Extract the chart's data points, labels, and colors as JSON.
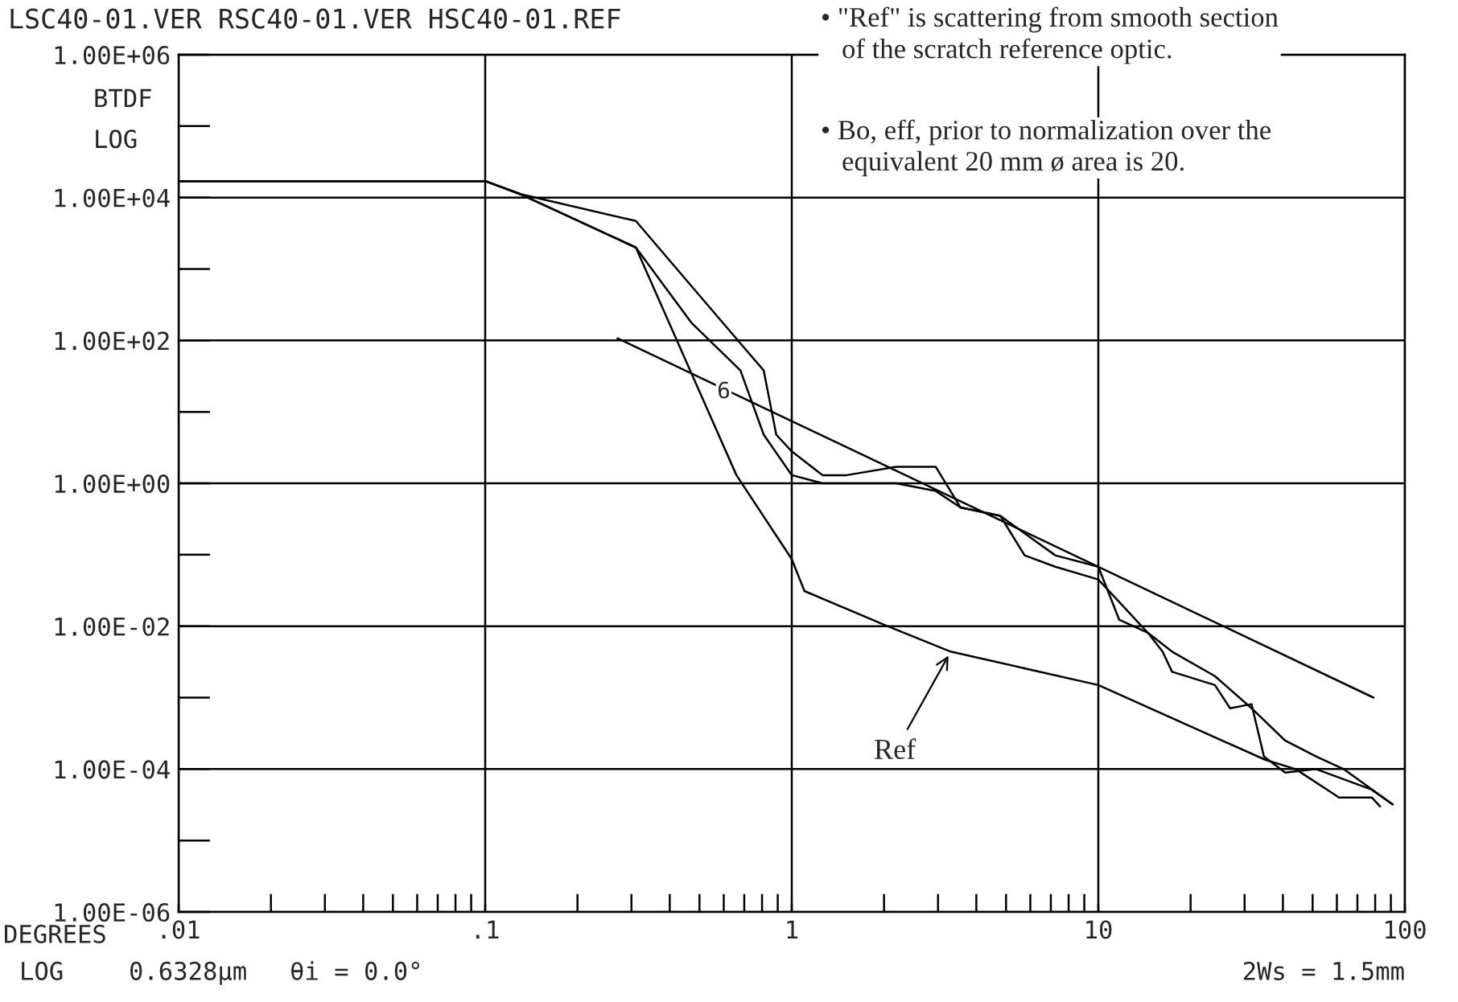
{
  "chart_data": {
    "type": "line",
    "title": "LSC40-01.VER RSC40-01.VER HSC40-01.REF",
    "xlabel": "DEGREES",
    "ylabel": "BTDF\nLOG",
    "log": "xy",
    "grid": true,
    "marker": "none",
    "line_style": "solid",
    "xlim": [
      0.01,
      100
    ],
    "ylim": [
      1e-06,
      1000000.0
    ],
    "xticks": [
      {
        "value": 0.01,
        "label": ".01"
      },
      {
        "value": 0.1,
        "label": ".1"
      },
      1,
      10,
      100
    ],
    "yticks": [
      {
        "value": 1e-06,
        "label": "1.00E-06"
      },
      {
        "value": 0.0001,
        "label": "1.00E-04"
      },
      {
        "value": 0.01,
        "label": "1.00E-02"
      },
      {
        "value": 1,
        "label": "1.00E+00"
      },
      {
        "value": 100,
        "label": "1.00E+02"
      },
      {
        "value": 10000,
        "label": "1.00E+04"
      },
      {
        "value": 1000000,
        "label": "1.00E+06"
      }
    ],
    "series": [
      {
        "color": "#000000",
        "x": [
          0.01,
          0.1,
          0.13,
          0.31,
          0.68,
          0.81,
          0.89,
          1.0,
          1.26,
          1.51,
          2.19,
          2.95,
          3.55,
          4.79,
          5.75,
          7.24,
          10,
          14.5,
          16.2,
          17.4,
          24,
          26.9,
          31.6,
          34.7,
          40.7,
          51.3,
          77.6,
          91.2
        ],
        "values": [
          17000,
          17000,
          11200,
          4700,
          91,
          38,
          4.8,
          2.8,
          1.3,
          1.3,
          1.7,
          1.7,
          0.46,
          0.35,
          0.098,
          0.068,
          0.045,
          0.0081,
          0.0044,
          0.0023,
          0.0015,
          0.00071,
          0.00081,
          0.00015,
          8.9e-05,
          0.0001,
          5.2e-05,
          3.2e-05
        ]
      },
      {
        "color": "#000000",
        "x": [
          0.01,
          0.1,
          0.13,
          0.31,
          0.47,
          0.68,
          0.81,
          1.0,
          1.26,
          2.19,
          2.95,
          3.55,
          4.79,
          7.24,
          10,
          11.7,
          14.5,
          17.4,
          24,
          31.6,
          40.7,
          51.3,
          63.1,
          91.2
        ],
        "values": [
          17000,
          17000,
          11200,
          2000,
          178,
          38,
          4.8,
          1.3,
          1,
          1,
          0.78,
          0.46,
          0.35,
          0.098,
          0.068,
          0.0123,
          0.0081,
          0.0044,
          0.002,
          0.00071,
          0.00025,
          0.00015,
          0.0001,
          3.2e-05
        ]
      },
      {
        "color": "#000000",
        "x": [
          0.01,
          0.1,
          0.13,
          0.31,
          0.66,
          1.0,
          1.1,
          2.0,
          3.3,
          10,
          35,
          44,
          61,
          78,
          83
        ],
        "values": [
          17000,
          17000,
          11200,
          2000,
          1.3,
          0.087,
          0.031,
          0.0105,
          0.0044,
          0.0015,
          0.000135,
          0.0001,
          4e-05,
          4e-05,
          3e-05
        ]
      },
      {
        "color": "#000000",
        "x": [
          0.27,
          79
        ],
        "values": [
          107,
          0.001
        ]
      }
    ],
    "annotations": [
      {
        "text": "Ref",
        "x": 3.3,
        "y": 0.0044
      },
      {
        "text": "6",
        "x": 0.6,
        "y": 19
      },
      "LOG",
      "0.6328µm",
      "θi = 0.0°",
      "2Ws = 1.5mm",
      "• \"Ref\" is scattering from smooth section\n   of the scratch reference optic.",
      "• Bo, eff, prior to normalization over the\n   equivalent 20 mm ø area is 20."
    ]
  }
}
